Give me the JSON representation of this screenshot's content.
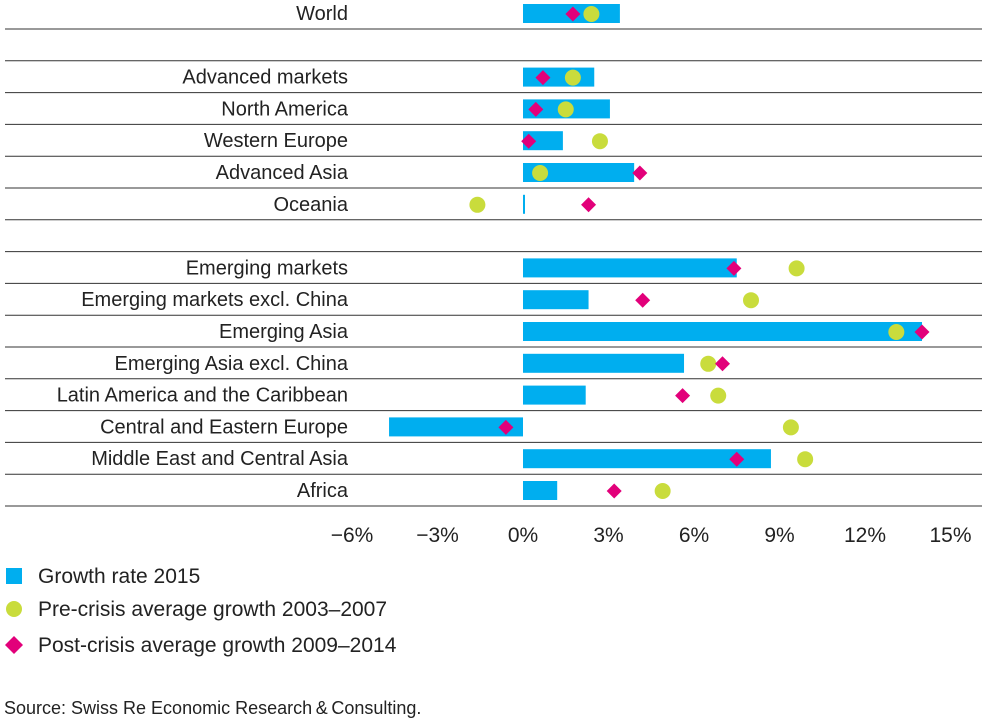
{
  "chart_data": {
    "type": "bar",
    "orientation": "horizontal",
    "groups": [
      [
        "World"
      ],
      [
        "Advanced markets",
        "North America",
        "Western Europe",
        "Advanced Asia",
        "Oceania"
      ],
      [
        "Emerging markets",
        "Emerging markets excl. China",
        "Emerging Asia",
        "Emerging Asia excl. China",
        "Latin America and the Caribbean",
        "Central and Eastern Europe",
        "Middle East and Central Asia",
        "Africa"
      ]
    ],
    "categories": [
      "World",
      "Advanced markets",
      "North America",
      "Western Europe",
      "Advanced Asia",
      "Oceania",
      "Emerging markets",
      "Emerging markets excl. China",
      "Emerging Asia",
      "Emerging Asia excl. China",
      "Latin America and the Caribbean",
      "Central and Eastern Europe",
      "Middle East and Central Asia",
      "Africa"
    ],
    "series": [
      {
        "name": "Growth rate 2015",
        "mark": "bar",
        "color": "#00aeef",
        "values": [
          3.4,
          2.5,
          3.05,
          1.4,
          3.9,
          0.05,
          7.5,
          2.3,
          14.0,
          5.65,
          2.2,
          -4.7,
          8.7,
          1.2
        ]
      },
      {
        "name": "Pre-crisis average growth 2003–2007",
        "mark": "circle",
        "color": "#c9dc3c",
        "values": [
          2.4,
          1.75,
          1.5,
          2.7,
          0.6,
          -1.6,
          9.6,
          8.0,
          13.1,
          6.5,
          6.85,
          9.4,
          9.9,
          4.9
        ]
      },
      {
        "name": "Post-crisis average growth 2009–2014",
        "mark": "diamond",
        "color": "#e2007a",
        "values": [
          1.75,
          0.7,
          0.45,
          0.2,
          4.1,
          2.3,
          7.4,
          4.2,
          14.0,
          7.0,
          5.6,
          -0.6,
          7.5,
          3.2
        ]
      }
    ],
    "xlim": [
      -6,
      15
    ],
    "xticks": [
      -6,
      -3,
      0,
      3,
      6,
      9,
      12,
      15
    ],
    "xtick_labels": [
      "−6%",
      "−3%",
      "0%",
      "3%",
      "6%",
      "9%",
      "12%",
      "15%"
    ],
    "legend_position": "bottom-left",
    "grid": "horizontal row separators"
  },
  "source": "Source: Swiss Re Economic Research & Consulting."
}
